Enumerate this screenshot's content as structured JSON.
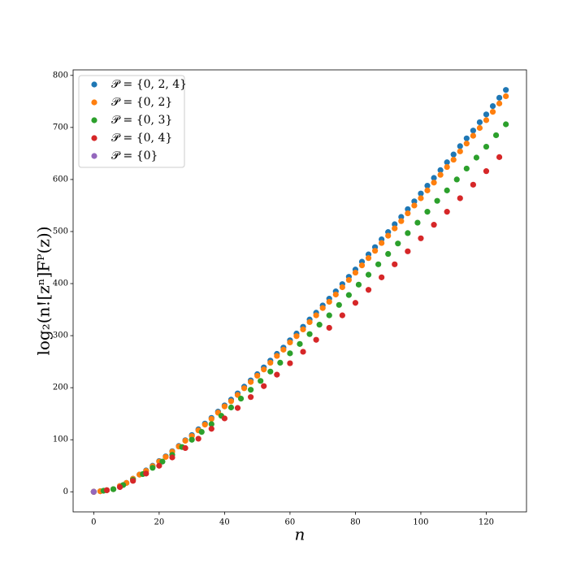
{
  "chart_data": {
    "type": "scatter",
    "x_label": "n",
    "y_label": "log₂(n![zⁿ]Fᴾ(z))",
    "xlim": [
      -6.3,
      132.3
    ],
    "ylim": [
      -38.6,
      810.6
    ],
    "xticks": [
      0,
      20,
      40,
      60,
      80,
      100,
      120
    ],
    "yticks": [
      0,
      100,
      200,
      300,
      400,
      500,
      600,
      700,
      800
    ],
    "legend": "upper left",
    "series": [
      {
        "name": "𝒫 = {0, 2, 4}",
        "color": "#1f77b4",
        "x": [
          0,
          2,
          4,
          6,
          8,
          10,
          12,
          14,
          16,
          18,
          20,
          22,
          24,
          26,
          28,
          30,
          32,
          34,
          36,
          38,
          40,
          42,
          44,
          46,
          48,
          50,
          52,
          54,
          56,
          58,
          60,
          62,
          64,
          66,
          68,
          70,
          72,
          74,
          76,
          78,
          80,
          82,
          84,
          86,
          88,
          90,
          92,
          94,
          96,
          98,
          100,
          102,
          104,
          106,
          108,
          110,
          112,
          114,
          116,
          118,
          120,
          122,
          124,
          126
        ],
        "values": [
          0,
          1,
          3,
          5,
          11,
          17,
          25,
          33,
          41,
          50,
          59,
          68,
          78,
          88,
          99,
          109,
          120,
          131,
          142,
          154,
          166,
          177,
          189,
          202,
          214,
          226,
          239,
          252,
          265,
          277,
          291,
          304,
          317,
          331,
          344,
          358,
          371,
          385,
          399,
          413,
          427,
          442,
          456,
          470,
          485,
          499,
          514,
          528,
          543,
          558,
          573,
          588,
          603,
          618,
          633,
          648,
          664,
          679,
          694,
          710,
          725,
          741,
          757,
          772
        ]
      },
      {
        "name": "𝒫 = {0, 2}",
        "color": "#ff7f0e",
        "x": [
          0,
          2,
          4,
          6,
          8,
          10,
          12,
          14,
          16,
          18,
          20,
          22,
          24,
          26,
          28,
          30,
          32,
          34,
          36,
          38,
          40,
          42,
          44,
          46,
          48,
          50,
          52,
          54,
          56,
          58,
          60,
          62,
          64,
          66,
          68,
          70,
          72,
          74,
          76,
          78,
          80,
          82,
          84,
          86,
          88,
          90,
          92,
          94,
          96,
          98,
          100,
          102,
          104,
          106,
          108,
          110,
          112,
          114,
          116,
          118,
          120,
          122,
          124,
          126
        ],
        "values": [
          0,
          1,
          3,
          5,
          11,
          17,
          25,
          33,
          40,
          49,
          58,
          67,
          77,
          87,
          98,
          107,
          118,
          129,
          140,
          152,
          164,
          174,
          186,
          199,
          211,
          223,
          235,
          248,
          261,
          273,
          287,
          299,
          312,
          326,
          339,
          353,
          365,
          379,
          393,
          407,
          421,
          435,
          449,
          463,
          478,
          492,
          506,
          520,
          535,
          550,
          564,
          579,
          594,
          609,
          624,
          638,
          654,
          669,
          684,
          699,
          714,
          730,
          746,
          760
        ]
      },
      {
        "name": "𝒫 = {0, 3}",
        "color": "#2ca02c",
        "x": [
          0,
          3,
          6,
          9,
          12,
          15,
          18,
          21,
          24,
          27,
          30,
          33,
          36,
          39,
          42,
          45,
          48,
          51,
          54,
          57,
          60,
          63,
          66,
          69,
          72,
          75,
          78,
          81,
          84,
          87,
          90,
          93,
          96,
          99,
          102,
          105,
          108,
          111,
          114,
          117,
          120,
          123,
          126
        ],
        "values": [
          0,
          2,
          5,
          13,
          23,
          34,
          46,
          58,
          71,
          86,
          100,
          115,
          130,
          146,
          162,
          179,
          196,
          213,
          231,
          248,
          266,
          284,
          303,
          321,
          339,
          359,
          378,
          398,
          417,
          437,
          457,
          477,
          497,
          517,
          538,
          559,
          579,
          600,
          621,
          642,
          663,
          685,
          706
        ]
      },
      {
        "name": "𝒫 = {0, 4}",
        "color": "#d62728",
        "x": [
          0,
          4,
          8,
          12,
          16,
          20,
          24,
          28,
          32,
          36,
          40,
          44,
          48,
          52,
          56,
          60,
          64,
          68,
          72,
          76,
          80,
          84,
          88,
          92,
          96,
          100,
          104,
          108,
          112,
          116,
          120,
          124
        ],
        "values": [
          0,
          3,
          9,
          21,
          35,
          50,
          66,
          84,
          102,
          121,
          141,
          161,
          182,
          203,
          225,
          247,
          269,
          292,
          315,
          339,
          363,
          388,
          412,
          437,
          462,
          487,
          513,
          538,
          564,
          590,
          616,
          643
        ]
      },
      {
        "name": "𝒫 = {0}",
        "color": "#9467bd",
        "x": [
          0
        ],
        "values": [
          0
        ]
      }
    ]
  }
}
